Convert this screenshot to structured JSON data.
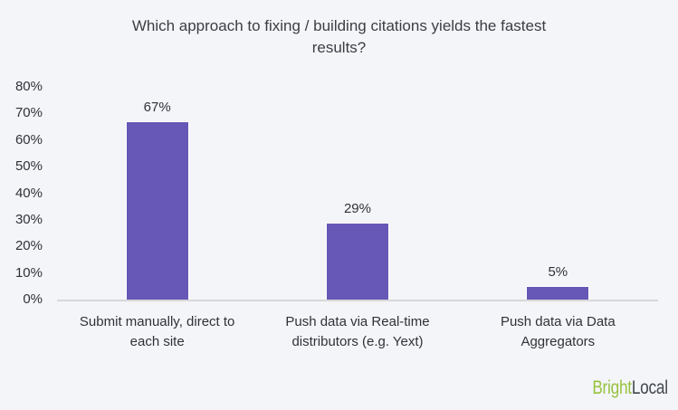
{
  "chart_data": {
    "type": "bar",
    "title": "Which approach to fixing / building citations yields the fastest results?",
    "title_lines": [
      "Which approach to fixing / building citations yields the fastest",
      "results?"
    ],
    "categories": [
      [
        "Submit manually, direct to",
        "each site"
      ],
      [
        "Push data via Real-time",
        "distributors (e.g. Yext)"
      ],
      [
        "Push data via Data",
        "Aggregators"
      ]
    ],
    "values": [
      67,
      29,
      5
    ],
    "value_labels": [
      "67%",
      "29%",
      "5%"
    ],
    "xlabel": "",
    "ylabel": "",
    "ylim": [
      0,
      80
    ],
    "yticks": [
      0,
      10,
      20,
      30,
      40,
      50,
      60,
      70,
      80
    ],
    "ytick_labels": [
      "0%",
      "10%",
      "20%",
      "30%",
      "40%",
      "50%",
      "60%",
      "70%",
      "80%"
    ],
    "grid": "none",
    "legend": "none",
    "bar_color": "#6757b7",
    "bar_border_color": "#ffffff"
  },
  "colors": {
    "background": "#f4f5f9",
    "axis_line": "#d8d8d8",
    "text": "#2e3238",
    "title_text": "#3a3e44"
  },
  "logo": {
    "bright": "Bright",
    "local": "Local",
    "bright_color": "#97c33d",
    "local_color": "#3f474e"
  }
}
